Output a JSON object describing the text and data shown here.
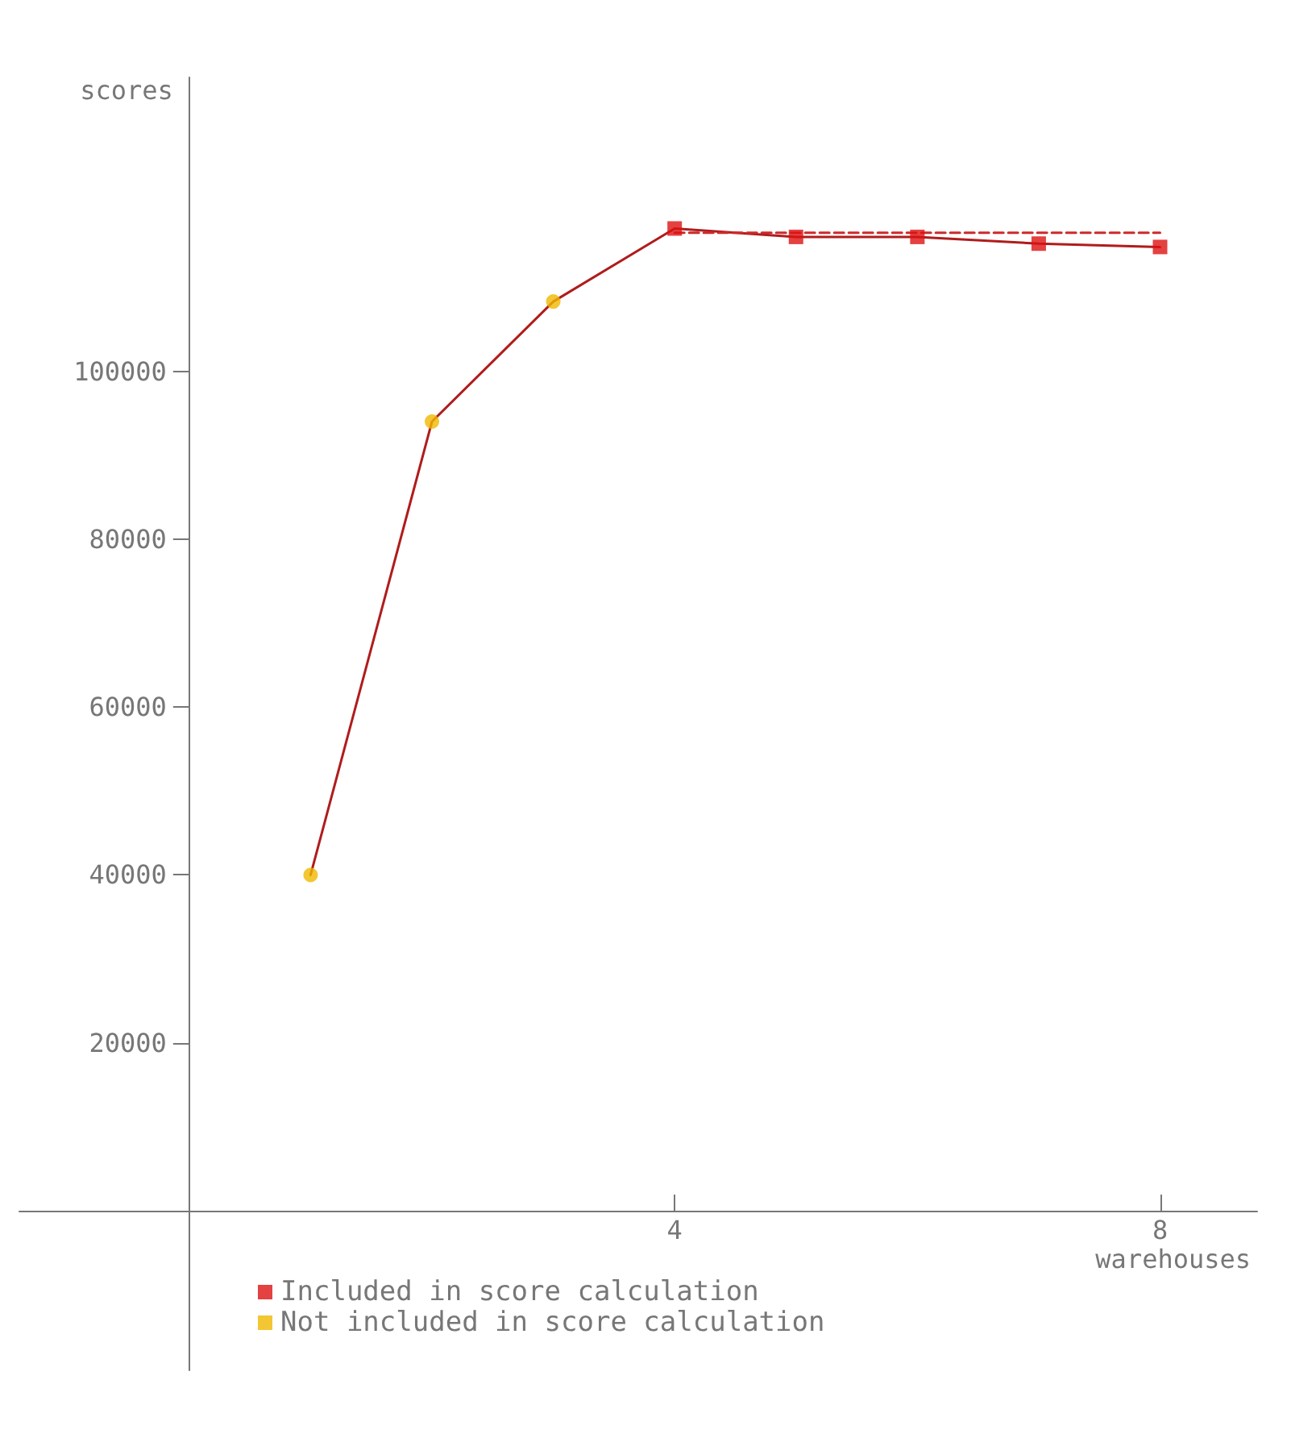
{
  "chart_data": {
    "type": "line",
    "xlabel": "warehouses",
    "ylabel": "scores",
    "xlim": [
      -1.4,
      8.8
    ],
    "xticks": [
      4,
      8
    ],
    "ylim": [
      -19000,
      135000
    ],
    "yticks": [
      20000,
      40000,
      60000,
      80000,
      100000
    ],
    "grid": false,
    "legend": "bottom left",
    "series": [
      {
        "type": "line",
        "color": "#b01c1c",
        "x": [
          1,
          2,
          3,
          4,
          5,
          6,
          7,
          8
        ],
        "values": [
          40000,
          94000,
          108300,
          117000,
          116000,
          116000,
          115200,
          114800
        ],
        "marker": "none",
        "line_style": "solid"
      },
      {
        "type": "line",
        "color": "#cc2a2a",
        "x": [
          4,
          8
        ],
        "values": [
          116500,
          116500
        ],
        "marker": "none",
        "line_style": "dashed"
      },
      {
        "type": "scatter",
        "name": "Included in score calculation",
        "color": "#dd1111",
        "x": [
          4,
          5,
          6,
          7,
          8
        ],
        "values": [
          117000,
          116000,
          116000,
          115200,
          114800
        ],
        "marker": "square"
      },
      {
        "type": "scatter",
        "name": "Not included in score calculation",
        "color": "#f0b800",
        "x": [
          1,
          2,
          3
        ],
        "values": [
          40000,
          94000,
          108300
        ],
        "marker": "circle"
      }
    ]
  }
}
